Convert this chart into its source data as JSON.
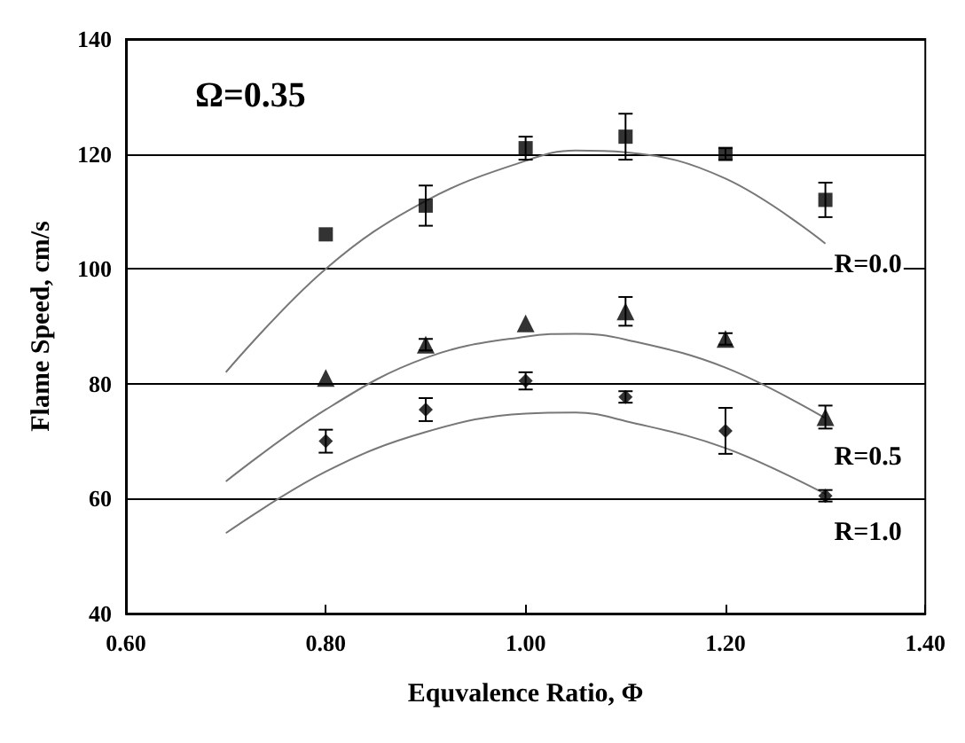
{
  "chart_data": {
    "type": "scatter",
    "xlabel": "Equvalence Ratio, Φ",
    "ylabel": "Flame Speed, cm/s",
    "xlim": [
      0.6,
      1.4
    ],
    "xticks": [
      {
        "value": 0.6,
        "label": "0.60"
      },
      {
        "value": 0.8,
        "label": "0.80"
      },
      {
        "value": 1.0,
        "label": "1.00"
      },
      {
        "value": 1.2,
        "label": "1.20"
      },
      {
        "value": 1.4,
        "label": "1.40"
      }
    ],
    "ylim": [
      40,
      140
    ],
    "yticks": [
      40,
      60,
      80,
      100,
      120,
      140
    ],
    "grid": "y",
    "series": [
      {
        "marker": "square",
        "color": "#000000",
        "x": [
          0.8,
          0.9,
          1.0,
          1.1,
          1.2,
          1.3
        ],
        "values": [
          106,
          111,
          121,
          123,
          120,
          112
        ],
        "errors": [
          null,
          3.5,
          2,
          4,
          1,
          3
        ]
      },
      {
        "marker": "triangle",
        "color": "#000000",
        "x": [
          0.8,
          0.9,
          1.0,
          1.1,
          1.2,
          1.3
        ],
        "values": [
          81,
          86.8,
          90.5,
          92.6,
          87.8,
          74.2
        ],
        "errors": [
          null,
          1,
          null,
          2.5,
          1,
          2
        ]
      },
      {
        "marker": "diamond",
        "color": "#000000",
        "x": [
          0.8,
          0.9,
          1.0,
          1.1,
          1.2,
          1.3
        ],
        "values": [
          70,
          75.5,
          80.5,
          77.7,
          71.8,
          60.5
        ],
        "errors": [
          2,
          2,
          1.5,
          1,
          4,
          1
        ]
      },
      {
        "type": "line",
        "name": "R=0.0",
        "marker": "none",
        "color": "#777777",
        "x": [
          0.7,
          0.8,
          0.9,
          1.0,
          1.05,
          1.1,
          1.2,
          1.3
        ],
        "values": [
          82,
          100,
          111.8,
          118.8,
          120.6,
          120.3,
          115.7,
          104.4
        ]
      },
      {
        "type": "line",
        "name": "R=0.5",
        "marker": "none",
        "color": "#777777",
        "x": [
          0.7,
          0.8,
          0.9,
          1.0,
          1.05,
          1.1,
          1.2,
          1.3
        ],
        "values": [
          63,
          75.5,
          84.5,
          88.2,
          88.7,
          87.7,
          82.8,
          74
        ]
      },
      {
        "type": "line",
        "name": "R=1.0",
        "marker": "none",
        "color": "#777777",
        "x": [
          0.7,
          0.8,
          0.9,
          1.0,
          1.05,
          1.1,
          1.2,
          1.3
        ],
        "values": [
          54,
          64.7,
          71.6,
          74.8,
          75,
          73.5,
          68.8,
          60.8
        ]
      }
    ],
    "annotations": [
      "Ω=0.35"
    ]
  }
}
